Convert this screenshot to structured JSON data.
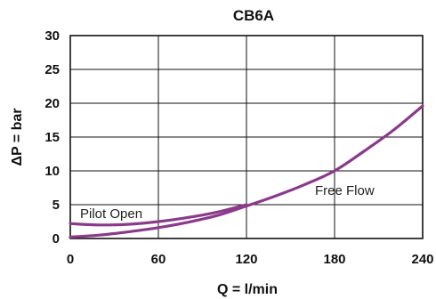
{
  "chart_data": {
    "type": "line",
    "title": "CB6A",
    "xlabel": "Q = l/min",
    "ylabel": "ΔP = bar",
    "xlim": [
      0,
      240
    ],
    "ylim": [
      0,
      30
    ],
    "x_ticks": [
      0,
      60,
      120,
      180,
      240
    ],
    "y_ticks": [
      0,
      5,
      10,
      15,
      20,
      25,
      30
    ],
    "grid": true,
    "color": "#8B3A8B",
    "series": [
      {
        "name": "Pilot Open",
        "x": [
          0,
          20,
          40,
          60,
          80,
          100,
          120
        ],
        "y": [
          2.2,
          2.0,
          2.1,
          2.5,
          3.1,
          3.9,
          5.0
        ]
      },
      {
        "name": "Free Flow",
        "x": [
          0,
          20,
          40,
          60,
          80,
          100,
          120,
          140,
          160,
          180,
          200,
          220,
          240
        ],
        "y": [
          0.2,
          0.5,
          1.0,
          1.6,
          2.4,
          3.4,
          4.8,
          6.3,
          8.0,
          10.0,
          12.9,
          16.0,
          19.6
        ]
      }
    ],
    "annotations": [
      "Pilot Open",
      "Free Flow"
    ]
  }
}
